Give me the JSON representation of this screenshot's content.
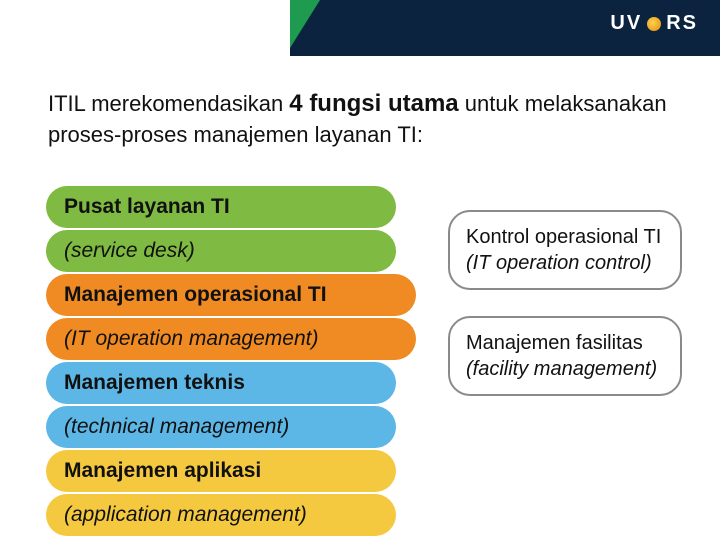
{
  "header": {
    "logo_left": "UV",
    "logo_right": "RS",
    "stripe_colors": {
      "navy": "#0c2340",
      "green": "#1e9b4f",
      "light": "#d9e6ee"
    }
  },
  "intro": {
    "pre": "ITIL merekomendasikan ",
    "bold": "4 fungsi utama",
    "post": " untuk melaksanakan proses-proses manajemen layanan TI:"
  },
  "left": [
    {
      "head": "Pusat layanan TI",
      "sub": "(service desk)",
      "color": "c-green"
    },
    {
      "head": "Manajemen operasional TI",
      "sub": "(IT operation management)",
      "color": "c-orange"
    },
    {
      "head": "Manajemen teknis",
      "sub": "(technical management)",
      "color": "c-sky"
    },
    {
      "head": "Manajemen aplikasi",
      "sub": "(application management)",
      "color": "c-yellow"
    }
  ],
  "right": [
    {
      "plain": "Kontrol operasional TI ",
      "italic": "(IT operation control)"
    },
    {
      "plain": "Manajemen fasilitas ",
      "italic": "(facility management)"
    }
  ]
}
